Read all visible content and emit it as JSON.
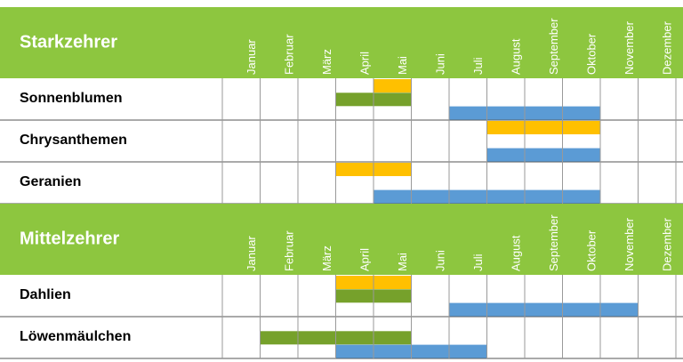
{
  "sections": [
    {
      "title": "Starkzehrer",
      "months": [
        "Januar",
        "Februar",
        "März",
        "April",
        "Mai",
        "Juni",
        "Juli",
        "August",
        "September",
        "Oktober",
        "November",
        "Dezember"
      ],
      "rows": [
        "Sonnenblumen",
        "Chrysanthemen",
        "Geranien"
      ]
    },
    {
      "title": "Mittelzehrer",
      "months": [
        "Januar",
        "Februar",
        "März",
        "April",
        "Mai",
        "Juni",
        "Juli",
        "August",
        "September",
        "Oktober",
        "November",
        "Dezember"
      ],
      "rows": [
        "Dahlien",
        "Löwenmäulchen"
      ]
    }
  ]
}
